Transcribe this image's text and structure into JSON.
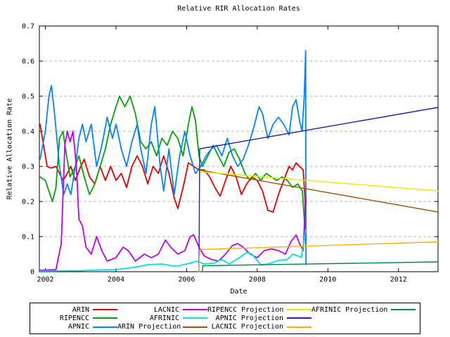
{
  "chart_data": {
    "type": "line",
    "title": "Relative RIR Allocation Rates",
    "xlabel": "Date",
    "ylabel": "Relative Allocation Rate",
    "xlim": [
      2001.83,
      2013.12
    ],
    "ylim": [
      0,
      0.7
    ],
    "grid": "horizontal-dashed",
    "grid_color": "#b0b0b0",
    "border_color": "#000000",
    "legend_position": "below-chart-boxed",
    "x_ticks": [
      {
        "v": 2002,
        "label": "2002"
      },
      {
        "v": 2004,
        "label": "2004"
      },
      {
        "v": 2006,
        "label": "2006"
      },
      {
        "v": 2008,
        "label": "2008"
      },
      {
        "v": 2010,
        "label": "2010"
      },
      {
        "v": 2012,
        "label": "2012"
      }
    ],
    "y_ticks": [
      {
        "v": 0.0,
        "label": "0"
      },
      {
        "v": 0.1,
        "label": "0.1"
      },
      {
        "v": 0.2,
        "label": "0.2"
      },
      {
        "v": 0.3,
        "label": "0.3"
      },
      {
        "v": 0.4,
        "label": "0.4"
      },
      {
        "v": 0.5,
        "label": "0.5"
      },
      {
        "v": 0.6,
        "label": "0.6"
      },
      {
        "v": 0.7,
        "label": "0.7"
      }
    ],
    "series": [
      {
        "name": "ARIN",
        "color": "#e60000",
        "width": 1.8,
        "points": [
          [
            2001.85,
            0.42
          ],
          [
            2001.95,
            0.36
          ],
          [
            2002.05,
            0.3
          ],
          [
            2002.15,
            0.295
          ],
          [
            2002.3,
            0.3
          ],
          [
            2002.5,
            0.26
          ],
          [
            2002.62,
            0.28
          ],
          [
            2002.72,
            0.3
          ],
          [
            2002.85,
            0.26
          ],
          [
            2003.0,
            0.3
          ],
          [
            2003.1,
            0.32
          ],
          [
            2003.25,
            0.27
          ],
          [
            2003.4,
            0.25
          ],
          [
            2003.55,
            0.3
          ],
          [
            2003.7,
            0.26
          ],
          [
            2003.85,
            0.3
          ],
          [
            2004.0,
            0.26
          ],
          [
            2004.15,
            0.28
          ],
          [
            2004.3,
            0.24
          ],
          [
            2004.45,
            0.3
          ],
          [
            2004.6,
            0.33
          ],
          [
            2004.75,
            0.3
          ],
          [
            2004.9,
            0.25
          ],
          [
            2005.05,
            0.3
          ],
          [
            2005.2,
            0.28
          ],
          [
            2005.35,
            0.33
          ],
          [
            2005.5,
            0.28
          ],
          [
            2005.65,
            0.21
          ],
          [
            2005.75,
            0.18
          ],
          [
            2005.9,
            0.24
          ],
          [
            2006.05,
            0.31
          ],
          [
            2006.2,
            0.3
          ],
          [
            2006.35,
            0.29
          ],
          [
            2006.5,
            0.29
          ],
          [
            2006.65,
            0.27
          ],
          [
            2006.8,
            0.24
          ],
          [
            2006.95,
            0.215
          ],
          [
            2007.1,
            0.26
          ],
          [
            2007.25,
            0.3
          ],
          [
            2007.4,
            0.27
          ],
          [
            2007.55,
            0.22
          ],
          [
            2007.7,
            0.25
          ],
          [
            2007.85,
            0.27
          ],
          [
            2008.0,
            0.26
          ],
          [
            2008.15,
            0.23
          ],
          [
            2008.3,
            0.175
          ],
          [
            2008.45,
            0.17
          ],
          [
            2008.6,
            0.22
          ],
          [
            2008.75,
            0.26
          ],
          [
            2008.9,
            0.3
          ],
          [
            2009.0,
            0.29
          ],
          [
            2009.1,
            0.31
          ],
          [
            2009.2,
            0.3
          ],
          [
            2009.3,
            0.29
          ],
          [
            2009.35,
            0.21
          ],
          [
            2009.37,
            0.08
          ]
        ]
      },
      {
        "name": "RIPENCC",
        "color": "#00a400",
        "width": 1.8,
        "points": [
          [
            2001.85,
            0.27
          ],
          [
            2002.0,
            0.26
          ],
          [
            2002.2,
            0.2
          ],
          [
            2002.3,
            0.24
          ],
          [
            2002.4,
            0.38
          ],
          [
            2002.5,
            0.4
          ],
          [
            2002.6,
            0.33
          ],
          [
            2002.7,
            0.27
          ],
          [
            2002.85,
            0.3
          ],
          [
            2002.95,
            0.33
          ],
          [
            2003.1,
            0.27
          ],
          [
            2003.25,
            0.22
          ],
          [
            2003.4,
            0.25
          ],
          [
            2003.55,
            0.3
          ],
          [
            2003.7,
            0.35
          ],
          [
            2003.85,
            0.42
          ],
          [
            2004.0,
            0.47
          ],
          [
            2004.1,
            0.5
          ],
          [
            2004.25,
            0.47
          ],
          [
            2004.4,
            0.5
          ],
          [
            2004.55,
            0.45
          ],
          [
            2004.7,
            0.37
          ],
          [
            2004.85,
            0.35
          ],
          [
            2005.0,
            0.37
          ],
          [
            2005.15,
            0.33
          ],
          [
            2005.3,
            0.38
          ],
          [
            2005.45,
            0.36
          ],
          [
            2005.6,
            0.4
          ],
          [
            2005.75,
            0.38
          ],
          [
            2005.9,
            0.33
          ],
          [
            2006.05,
            0.42
          ],
          [
            2006.15,
            0.47
          ],
          [
            2006.25,
            0.43
          ],
          [
            2006.35,
            0.33
          ],
          [
            2006.45,
            0.3
          ],
          [
            2006.6,
            0.33
          ],
          [
            2006.75,
            0.36
          ],
          [
            2006.9,
            0.33
          ],
          [
            2007.05,
            0.3
          ],
          [
            2007.2,
            0.34
          ],
          [
            2007.35,
            0.35
          ],
          [
            2007.5,
            0.32
          ],
          [
            2007.65,
            0.28
          ],
          [
            2007.8,
            0.26
          ],
          [
            2007.95,
            0.28
          ],
          [
            2008.1,
            0.26
          ],
          [
            2008.25,
            0.28
          ],
          [
            2008.4,
            0.27
          ],
          [
            2008.55,
            0.26
          ],
          [
            2008.7,
            0.27
          ],
          [
            2008.85,
            0.26
          ],
          [
            2009.0,
            0.24
          ],
          [
            2009.15,
            0.25
          ],
          [
            2009.28,
            0.23
          ],
          [
            2009.35,
            0.12
          ],
          [
            2009.37,
            0.1
          ]
        ]
      },
      {
        "name": "APNIC",
        "color": "#0084ff",
        "width": 1.8,
        "points": [
          [
            2001.85,
            0.32
          ],
          [
            2002.0,
            0.4
          ],
          [
            2002.1,
            0.5
          ],
          [
            2002.17,
            0.53
          ],
          [
            2002.25,
            0.46
          ],
          [
            2002.4,
            0.3
          ],
          [
            2002.52,
            0.22
          ],
          [
            2002.62,
            0.25
          ],
          [
            2002.72,
            0.22
          ],
          [
            2002.85,
            0.3
          ],
          [
            2002.95,
            0.38
          ],
          [
            2003.05,
            0.42
          ],
          [
            2003.15,
            0.37
          ],
          [
            2003.3,
            0.42
          ],
          [
            2003.45,
            0.3
          ],
          [
            2003.6,
            0.36
          ],
          [
            2003.75,
            0.44
          ],
          [
            2003.9,
            0.38
          ],
          [
            2004.0,
            0.42
          ],
          [
            2004.15,
            0.35
          ],
          [
            2004.3,
            0.3
          ],
          [
            2004.45,
            0.37
          ],
          [
            2004.6,
            0.42
          ],
          [
            2004.7,
            0.35
          ],
          [
            2004.85,
            0.28
          ],
          [
            2005.0,
            0.42
          ],
          [
            2005.1,
            0.47
          ],
          [
            2005.25,
            0.3
          ],
          [
            2005.35,
            0.23
          ],
          [
            2005.5,
            0.35
          ],
          [
            2005.65,
            0.22
          ],
          [
            2005.8,
            0.33
          ],
          [
            2005.95,
            0.4
          ],
          [
            2006.1,
            0.33
          ],
          [
            2006.25,
            0.28
          ],
          [
            2006.4,
            0.3
          ],
          [
            2006.55,
            0.33
          ],
          [
            2006.7,
            0.35
          ],
          [
            2006.85,
            0.36
          ],
          [
            2007.0,
            0.33
          ],
          [
            2007.15,
            0.38
          ],
          [
            2007.3,
            0.33
          ],
          [
            2007.45,
            0.3
          ],
          [
            2007.6,
            0.32
          ],
          [
            2007.75,
            0.36
          ],
          [
            2007.9,
            0.41
          ],
          [
            2008.05,
            0.47
          ],
          [
            2008.15,
            0.45
          ],
          [
            2008.3,
            0.38
          ],
          [
            2008.45,
            0.42
          ],
          [
            2008.6,
            0.44
          ],
          [
            2008.75,
            0.42
          ],
          [
            2008.9,
            0.39
          ],
          [
            2009.0,
            0.47
          ],
          [
            2009.1,
            0.49
          ],
          [
            2009.2,
            0.43
          ],
          [
            2009.27,
            0.4
          ],
          [
            2009.33,
            0.5
          ],
          [
            2009.37,
            0.63
          ],
          [
            2009.38,
            0.02
          ]
        ]
      },
      {
        "name": "LACNIC",
        "color": "#bb00ee",
        "width": 1.8,
        "points": [
          [
            2001.85,
            0.004
          ],
          [
            2002.3,
            0.006
          ],
          [
            2002.45,
            0.08
          ],
          [
            2002.55,
            0.36
          ],
          [
            2002.62,
            0.4
          ],
          [
            2002.7,
            0.37
          ],
          [
            2002.78,
            0.4
          ],
          [
            2002.88,
            0.3
          ],
          [
            2002.95,
            0.15
          ],
          [
            2003.05,
            0.13
          ],
          [
            2003.15,
            0.07
          ],
          [
            2003.3,
            0.05
          ],
          [
            2003.45,
            0.1
          ],
          [
            2003.6,
            0.06
          ],
          [
            2003.75,
            0.03
          ],
          [
            2004.0,
            0.04
          ],
          [
            2004.2,
            0.07
          ],
          [
            2004.35,
            0.06
          ],
          [
            2004.55,
            0.03
          ],
          [
            2004.8,
            0.05
          ],
          [
            2005.0,
            0.04
          ],
          [
            2005.2,
            0.05
          ],
          [
            2005.4,
            0.09
          ],
          [
            2005.55,
            0.07
          ],
          [
            2005.75,
            0.05
          ],
          [
            2005.95,
            0.06
          ],
          [
            2006.1,
            0.1
          ],
          [
            2006.2,
            0.105
          ],
          [
            2006.35,
            0.07
          ],
          [
            2006.5,
            0.045
          ],
          [
            2006.7,
            0.035
          ],
          [
            2006.9,
            0.03
          ],
          [
            2007.1,
            0.05
          ],
          [
            2007.3,
            0.075
          ],
          [
            2007.45,
            0.08
          ],
          [
            2007.6,
            0.07
          ],
          [
            2007.8,
            0.05
          ],
          [
            2008.0,
            0.04
          ],
          [
            2008.2,
            0.06
          ],
          [
            2008.4,
            0.065
          ],
          [
            2008.6,
            0.06
          ],
          [
            2008.8,
            0.05
          ],
          [
            2008.95,
            0.085
          ],
          [
            2009.1,
            0.105
          ],
          [
            2009.2,
            0.08
          ],
          [
            2009.3,
            0.06
          ],
          [
            2009.37,
            0.21
          ]
        ]
      },
      {
        "name": "AFRINIC",
        "color": "#00e0e0",
        "width": 1.8,
        "points": [
          [
            2001.85,
            0.002
          ],
          [
            2003.0,
            0.003
          ],
          [
            2003.5,
            0.005
          ],
          [
            2004.0,
            0.006
          ],
          [
            2004.5,
            0.012
          ],
          [
            2004.9,
            0.02
          ],
          [
            2005.3,
            0.022
          ],
          [
            2005.7,
            0.015
          ],
          [
            2006.0,
            0.022
          ],
          [
            2006.3,
            0.03
          ],
          [
            2006.5,
            0.022
          ],
          [
            2006.8,
            0.025
          ],
          [
            2007.0,
            0.035
          ],
          [
            2007.2,
            0.022
          ],
          [
            2007.5,
            0.04
          ],
          [
            2007.7,
            0.055
          ],
          [
            2007.85,
            0.05
          ],
          [
            2008.1,
            0.02
          ],
          [
            2008.3,
            0.022
          ],
          [
            2008.6,
            0.032
          ],
          [
            2008.85,
            0.035
          ],
          [
            2009.0,
            0.05
          ],
          [
            2009.15,
            0.045
          ],
          [
            2009.25,
            0.04
          ],
          [
            2009.37,
            0.12
          ]
        ]
      },
      {
        "name": "ARIN Projection",
        "color": "#b24d00",
        "width": 1.4,
        "points": [
          [
            2006.35,
            0.29
          ],
          [
            2013.12,
            0.17
          ]
        ]
      },
      {
        "name": "RIPENCC Projection",
        "color": "#e8e800",
        "width": 1.4,
        "points": [
          [
            2006.35,
            0.285
          ],
          [
            2013.12,
            0.23
          ]
        ]
      },
      {
        "name": "APNIC Projection",
        "color": "#2222b8",
        "width": 1.4,
        "points": [
          [
            2006.35,
            0.0
          ],
          [
            2006.37,
            0.35
          ],
          [
            2013.12,
            0.468
          ]
        ]
      },
      {
        "name": "LACNIC Projection",
        "color": "#ffae00",
        "width": 1.4,
        "points": [
          [
            2006.35,
            0.0
          ],
          [
            2006.37,
            0.063
          ],
          [
            2013.12,
            0.085
          ]
        ]
      },
      {
        "name": "AFRINIC Projection",
        "color": "#00864b",
        "width": 1.4,
        "points": [
          [
            2006.44,
            0.0
          ],
          [
            2006.46,
            0.017
          ],
          [
            2013.12,
            0.028
          ]
        ]
      }
    ],
    "legend_columns": [
      [
        "ARIN",
        "RIPENCC",
        "APNIC"
      ],
      [
        "LACNIC",
        "AFRINIC",
        "ARIN Projection"
      ],
      [
        "RIPENCC Projection",
        "APNIC Projection",
        "LACNIC Projection"
      ],
      [
        "AFRINIC Projection"
      ]
    ]
  }
}
